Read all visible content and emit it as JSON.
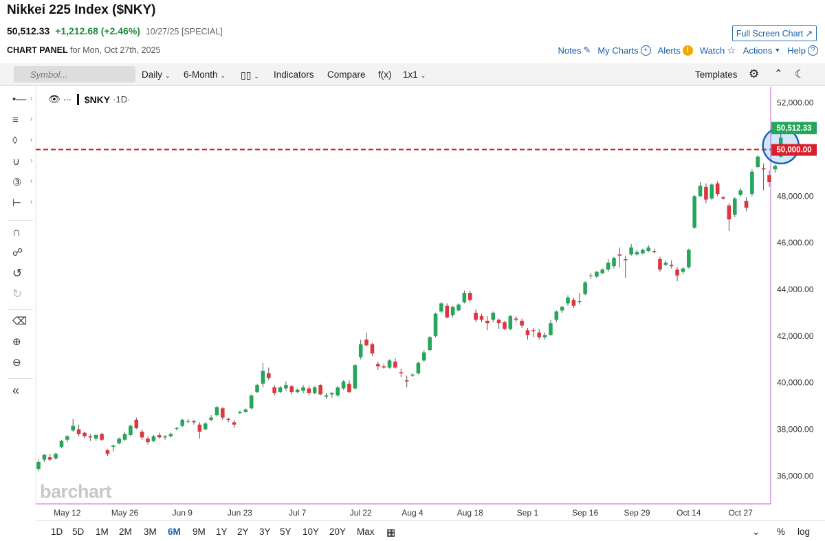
{
  "header": {
    "title": "Nikkei 225 Index ($NKY)",
    "last": "50,512.33",
    "change": "+1,212.68 (+2.46%)",
    "date": "10/27/25 [SPECIAL]",
    "panel_label": "CHART PANEL",
    "panel_date": "for Mon, Oct 27th, 2025",
    "fullscreen": "Full Screen Chart ↗"
  },
  "toplinks": {
    "notes": "Notes",
    "mycharts": "My Charts",
    "alerts": "Alerts",
    "watch": "Watch",
    "actions": "Actions",
    "help": "Help"
  },
  "toolbar": {
    "search_placeholder": "Symbol...",
    "interval": "Daily",
    "range": "6-Month",
    "indicators": "Indicators",
    "compare": "Compare",
    "fx": "f(x)",
    "layout": "1x1",
    "templates": "Templates"
  },
  "legend": {
    "symbol": "$NKY",
    "timeframe": "·1D·"
  },
  "brand": "barchart",
  "periods": [
    "1D",
    "5D",
    "1M",
    "2M",
    "3M",
    "6M",
    "9M",
    "1Y",
    "2Y",
    "3Y",
    "5Y",
    "10Y",
    "20Y",
    "Max"
  ],
  "active_period": "6M",
  "bottom_right": {
    "percent": "%",
    "log": "log"
  },
  "colors": {
    "up": "#26a65b",
    "down": "#e0353f",
    "hline": "#d8202b",
    "accent": "#1a5fa8"
  },
  "chart_data": {
    "type": "candlestick",
    "ylim": [
      34800,
      52700
    ],
    "y_ticks": [
      36000,
      38000,
      40000,
      42000,
      44000,
      46000,
      48000,
      50000,
      52000
    ],
    "y_tick_labels": [
      "36,000.00",
      "38,000.00",
      "40,000.00",
      "42,000.00",
      "44,000.00",
      "46,000.00",
      "48,000.00",
      "50,000.00",
      "52,000.00"
    ],
    "x_labels": [
      "May 12",
      "May 26",
      "Jun 9",
      "Jun 23",
      "Jul 7",
      "Jul 22",
      "Aug 4",
      "Aug 18",
      "Sep 1",
      "Sep 16",
      "Sep 29",
      "Oct 14",
      "Oct 27"
    ],
    "x_label_index": [
      5,
      15,
      25,
      35,
      45,
      56,
      65,
      75,
      85,
      95,
      104,
      113,
      122
    ],
    "last_price_label": "50,512.33",
    "level_line": {
      "value": 50000,
      "label": "50,000.00",
      "style": "dashed"
    },
    "grid": false,
    "candles": [
      [
        36300,
        36700,
        36200,
        36600
      ],
      [
        36700,
        36950,
        36600,
        36900
      ],
      [
        36800,
        36950,
        36650,
        36700
      ],
      [
        36750,
        37000,
        36700,
        36950
      ],
      [
        37250,
        37550,
        37200,
        37500
      ],
      [
        37550,
        37750,
        37450,
        37700
      ],
      [
        37950,
        38450,
        37900,
        38150
      ],
      [
        38000,
        38200,
        37700,
        37800
      ],
      [
        37850,
        37900,
        37600,
        37700
      ],
      [
        37700,
        37800,
        37500,
        37650
      ],
      [
        37600,
        37800,
        37500,
        37750
      ],
      [
        37800,
        37850,
        37500,
        37550
      ],
      [
        37100,
        37150,
        36850,
        36950
      ],
      [
        37250,
        37350,
        37050,
        37300
      ],
      [
        37400,
        37650,
        37350,
        37600
      ],
      [
        37550,
        37900,
        37500,
        37800
      ],
      [
        37750,
        38200,
        37700,
        38150
      ],
      [
        38400,
        38500,
        38000,
        38050
      ],
      [
        37900,
        38000,
        37550,
        37650
      ],
      [
        37600,
        37700,
        37350,
        37450
      ],
      [
        37500,
        37750,
        37450,
        37700
      ],
      [
        37750,
        37850,
        37600,
        37650
      ],
      [
        37650,
        37750,
        37550,
        37700
      ],
      [
        37700,
        37850,
        37650,
        37800
      ],
      [
        38050,
        38100,
        37950,
        38050
      ],
      [
        38150,
        38450,
        38100,
        38400
      ],
      [
        38350,
        38450,
        38250,
        38350
      ],
      [
        38350,
        38400,
        38200,
        38300
      ],
      [
        38200,
        38300,
        37600,
        37900
      ],
      [
        38000,
        38300,
        37950,
        38250
      ],
      [
        38400,
        38600,
        38350,
        38500
      ],
      [
        38600,
        39000,
        38550,
        38950
      ],
      [
        38900,
        38950,
        38400,
        38500
      ],
      [
        38450,
        38500,
        38300,
        38400
      ],
      [
        38300,
        38400,
        38050,
        38200
      ],
      [
        38700,
        38800,
        38650,
        38750
      ],
      [
        38750,
        38900,
        38700,
        38850
      ],
      [
        38900,
        39500,
        38850,
        39450
      ],
      [
        39600,
        39950,
        39550,
        39900
      ],
      [
        39950,
        40850,
        39800,
        40500
      ],
      [
        40400,
        40650,
        40100,
        40200
      ],
      [
        39800,
        39900,
        39450,
        39550
      ],
      [
        39600,
        39850,
        39550,
        39800
      ],
      [
        39750,
        40050,
        39650,
        39900
      ],
      [
        39850,
        39900,
        39500,
        39600
      ],
      [
        39600,
        39750,
        39550,
        39700
      ],
      [
        39650,
        39900,
        39550,
        39800
      ],
      [
        39750,
        39850,
        39450,
        39550
      ],
      [
        39550,
        39850,
        39500,
        39800
      ],
      [
        39900,
        39950,
        39450,
        39500
      ],
      [
        39400,
        39550,
        39300,
        39450
      ],
      [
        39500,
        39600,
        39350,
        39550
      ],
      [
        39450,
        39850,
        39400,
        39800
      ],
      [
        39750,
        40100,
        39700,
        40050
      ],
      [
        39950,
        40100,
        39550,
        39600
      ],
      [
        39750,
        40800,
        39700,
        40750
      ],
      [
        41100,
        41850,
        41000,
        41650
      ],
      [
        41850,
        42150,
        41550,
        41600
      ],
      [
        41650,
        41700,
        41150,
        41250
      ],
      [
        40800,
        40900,
        40550,
        40700
      ],
      [
        40700,
        40800,
        40600,
        40650
      ],
      [
        40650,
        41000,
        40600,
        40950
      ],
      [
        40900,
        41050,
        40600,
        40650
      ],
      [
        40450,
        40600,
        40250,
        40400
      ],
      [
        40100,
        40300,
        39800,
        40050
      ],
      [
        40300,
        40400,
        40250,
        40350
      ],
      [
        40400,
        40900,
        40350,
        40850
      ],
      [
        40950,
        41400,
        40900,
        41300
      ],
      [
        41400,
        42000,
        41350,
        41950
      ],
      [
        42000,
        43000,
        41950,
        42950
      ],
      [
        43050,
        43450,
        43000,
        43400
      ],
      [
        43300,
        43400,
        42750,
        42800
      ],
      [
        42900,
        43300,
        42800,
        43250
      ],
      [
        43100,
        43400,
        43050,
        43350
      ],
      [
        43450,
        43950,
        43400,
        43850
      ],
      [
        43850,
        43950,
        43450,
        43550
      ],
      [
        43000,
        43150,
        42600,
        42700
      ],
      [
        42850,
        42950,
        42600,
        42700
      ],
      [
        42650,
        42850,
        42250,
        42550
      ],
      [
        42700,
        43050,
        42600,
        43000
      ],
      [
        42700,
        42750,
        42300,
        42550
      ],
      [
        42600,
        42650,
        42250,
        42300
      ],
      [
        42300,
        42900,
        42250,
        42850
      ],
      [
        42750,
        42850,
        42600,
        42700
      ],
      [
        42650,
        42750,
        42350,
        42450
      ],
      [
        42250,
        42350,
        41850,
        42050
      ],
      [
        42250,
        42350,
        41950,
        42200
      ],
      [
        42150,
        42300,
        41850,
        41950
      ],
      [
        41950,
        42150,
        41850,
        42050
      ],
      [
        42050,
        42700,
        42000,
        42550
      ],
      [
        42700,
        43100,
        42600,
        43050
      ],
      [
        43100,
        43300,
        43000,
        43250
      ],
      [
        43400,
        43750,
        43300,
        43650
      ],
      [
        43550,
        43650,
        43200,
        43300
      ],
      [
        43500,
        43850,
        43350,
        43500
      ],
      [
        43800,
        44350,
        43750,
        44300
      ],
      [
        44600,
        44700,
        44450,
        44600
      ],
      [
        44550,
        44800,
        44500,
        44750
      ],
      [
        44700,
        44900,
        44650,
        44850
      ],
      [
        44850,
        45300,
        44750,
        45150
      ],
      [
        45000,
        45400,
        44900,
        45350
      ],
      [
        45500,
        45800,
        44950,
        45450
      ],
      [
        45250,
        45450,
        44500,
        45300
      ],
      [
        45500,
        45950,
        45450,
        45800
      ],
      [
        45500,
        45700,
        45450,
        45600
      ],
      [
        45550,
        45750,
        45500,
        45700
      ],
      [
        45650,
        45900,
        45600,
        45800
      ],
      [
        45650,
        45750,
        45550,
        45600
      ],
      [
        45300,
        45400,
        44750,
        44850
      ],
      [
        45050,
        45250,
        45000,
        45150
      ],
      [
        45050,
        45250,
        44900,
        45000
      ],
      [
        44850,
        44950,
        44350,
        44600
      ],
      [
        44750,
        44950,
        44650,
        44900
      ],
      [
        44950,
        45750,
        44900,
        45700
      ],
      [
        46650,
        48050,
        46600,
        48000
      ],
      [
        48000,
        48600,
        47950,
        48450
      ],
      [
        48400,
        48550,
        47700,
        47850
      ],
      [
        47900,
        48550,
        47850,
        48500
      ],
      [
        48550,
        48650,
        48000,
        48100
      ],
      [
        47950,
        48000,
        47850,
        47900
      ],
      [
        47600,
        47700,
        46500,
        47000
      ],
      [
        47200,
        47950,
        47100,
        47900
      ],
      [
        48050,
        48350,
        48000,
        48250
      ],
      [
        47800,
        47950,
        47350,
        47500
      ],
      [
        48100,
        49150,
        48000,
        49050
      ],
      [
        49250,
        49750,
        49200,
        49700
      ],
      [
        49200,
        49400,
        48250,
        49150
      ],
      [
        48900,
        49100,
        48400,
        48600
      ],
      [
        49150,
        49350,
        49000,
        49300
      ],
      [
        49700,
        50800,
        49650,
        50512
      ]
    ]
  }
}
